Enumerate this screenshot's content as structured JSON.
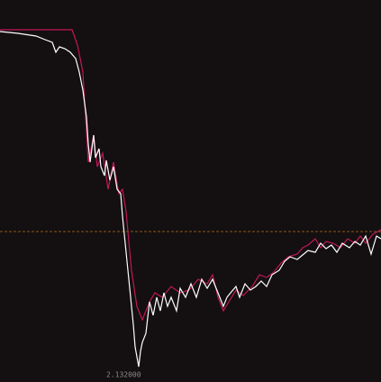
{
  "chart_data": {
    "type": "line",
    "xlim": [
      0,
      423
    ],
    "ylim": [
      2.115,
      2.539
    ],
    "background": "#140f10",
    "reference_line": {
      "value": 2.282,
      "color": "#8a5a1a"
    },
    "annotation": {
      "label": "2.132000",
      "value": 2.132,
      "x": 154,
      "color": "#8a8a8a"
    },
    "series": [
      {
        "color": "#ffffff",
        "x": [
          0,
          20,
          40,
          50,
          58,
          62,
          66,
          72,
          78,
          84,
          88,
          92,
          96,
          98,
          100,
          104,
          106,
          110,
          112,
          116,
          118,
          122,
          126,
          130,
          134,
          136,
          140,
          144,
          148,
          150,
          154,
          156,
          158,
          162,
          166,
          170,
          174,
          178,
          182,
          186,
          190,
          196,
          200,
          206,
          212,
          218,
          224,
          230,
          236,
          240,
          244,
          248,
          252,
          256,
          262,
          266,
          272,
          278,
          284,
          290,
          296,
          302,
          310,
          316,
          322,
          330,
          336,
          342,
          350,
          356,
          362,
          368,
          374,
          380,
          388,
          394,
          400,
          406,
          412,
          418,
          423
        ],
        "values": [
          2.504,
          2.502,
          2.499,
          2.495,
          2.492,
          2.481,
          2.487,
          2.485,
          2.481,
          2.474,
          2.459,
          2.439,
          2.409,
          2.379,
          2.359,
          2.389,
          2.364,
          2.374,
          2.354,
          2.344,
          2.361,
          2.339,
          2.354,
          2.329,
          2.324,
          2.299,
          2.259,
          2.219,
          2.179,
          2.154,
          2.132,
          2.149,
          2.159,
          2.169,
          2.204,
          2.189,
          2.209,
          2.194,
          2.214,
          2.199,
          2.209,
          2.194,
          2.219,
          2.209,
          2.224,
          2.209,
          2.229,
          2.219,
          2.229,
          2.219,
          2.209,
          2.199,
          2.209,
          2.214,
          2.221,
          2.209,
          2.224,
          2.217,
          2.221,
          2.227,
          2.221,
          2.234,
          2.239,
          2.249,
          2.254,
          2.251,
          2.256,
          2.261,
          2.259,
          2.269,
          2.263,
          2.267,
          2.259,
          2.269,
          2.264,
          2.271,
          2.267,
          2.277,
          2.257,
          2.277,
          2.274
        ]
      },
      {
        "color": "#c0185a",
        "x": [
          0,
          80,
          86,
          92,
          98,
          104,
          108,
          114,
          120,
          126,
          132,
          136,
          140,
          146,
          152,
          158,
          166,
          172,
          180,
          190,
          200,
          210,
          220,
          230,
          236,
          242,
          248,
          254,
          262,
          270,
          280,
          288,
          296,
          304,
          312,
          320,
          330,
          336,
          342,
          350,
          356,
          362,
          370,
          378,
          386,
          394,
          400,
          406,
          414,
          423
        ],
        "values": [
          2.506,
          2.506,
          2.489,
          2.459,
          2.359,
          2.389,
          2.354,
          2.369,
          2.329,
          2.359,
          2.324,
          2.329,
          2.304,
          2.239,
          2.199,
          2.184,
          2.204,
          2.214,
          2.209,
          2.221,
          2.214,
          2.217,
          2.229,
          2.224,
          2.234,
          2.209,
          2.194,
          2.204,
          2.217,
          2.211,
          2.221,
          2.234,
          2.231,
          2.237,
          2.247,
          2.254,
          2.257,
          2.264,
          2.267,
          2.274,
          2.264,
          2.271,
          2.269,
          2.264,
          2.274,
          2.269,
          2.277,
          2.269,
          2.279,
          2.284
        ]
      }
    ]
  }
}
